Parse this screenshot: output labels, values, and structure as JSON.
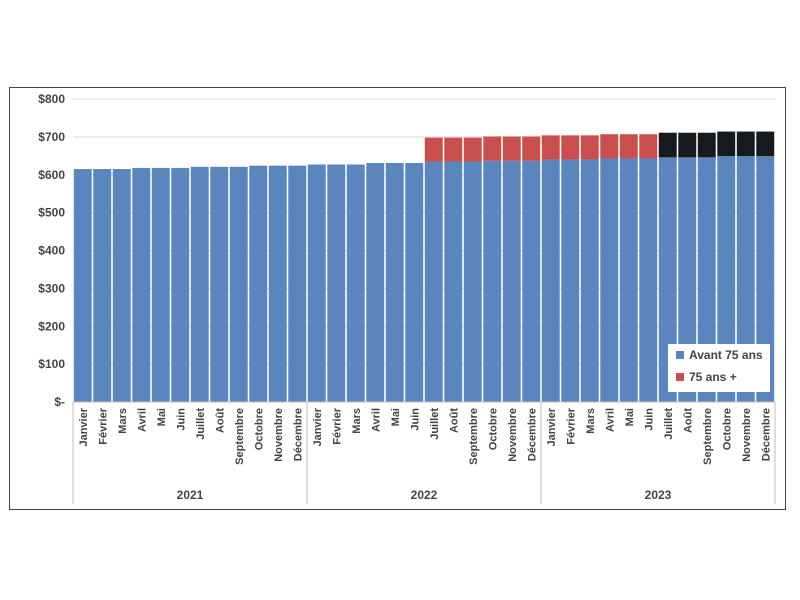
{
  "chart_data": {
    "type": "bar",
    "stacked": true,
    "title": "",
    "xlabel": "",
    "ylabel": "",
    "ylim": [
      0,
      800
    ],
    "yticks": [
      0,
      100,
      200,
      300,
      400,
      500,
      600,
      700,
      800
    ],
    "ytick_labels": [
      "$-",
      "$100",
      "$200",
      "$300",
      "$400",
      "$500",
      "$600",
      "$700",
      "$800"
    ],
    "grid": true,
    "legend_position": "bottom-right",
    "groups": [
      {
        "label": "2021",
        "categories": [
          "Janvier",
          "Février",
          "Mars",
          "Avril",
          "Mai",
          "Juin",
          "Juillet",
          "Août",
          "Septembre",
          "Octobre",
          "Novembre",
          "Décembre"
        ]
      },
      {
        "label": "2022",
        "categories": [
          "Janvier",
          "Février",
          "Mars",
          "Avril",
          "Mai",
          "Juin",
          "Juillet",
          "Août",
          "Septembre",
          "Octobre",
          "Novembre",
          "Décembre"
        ]
      },
      {
        "label": "2023",
        "categories": [
          "Janvier",
          "Février",
          "Mars",
          "Avril",
          "Mai",
          "Juin",
          "Juillet",
          "Août",
          "Septembre",
          "Octobre",
          "Novembre",
          "Décembre"
        ]
      }
    ],
    "series": [
      {
        "name": "Avant 75 ans",
        "color": "#5b85bd",
        "values": [
          615,
          615,
          615,
          618,
          618,
          618,
          621,
          621,
          621,
          624,
          624,
          624,
          627,
          627,
          627,
          631,
          631,
          631,
          635,
          635,
          635,
          637,
          637,
          637,
          640,
          640,
          640,
          643,
          643,
          643,
          646,
          646,
          646,
          649,
          649,
          649
        ]
      },
      {
        "name": "75 ans +",
        "color": "#c94f4f",
        "values": [
          0,
          0,
          0,
          0,
          0,
          0,
          0,
          0,
          0,
          0,
          0,
          0,
          0,
          0,
          0,
          0,
          0,
          0,
          63,
          63,
          63,
          64,
          64,
          64,
          64,
          64,
          64,
          64,
          64,
          64,
          0,
          0,
          0,
          0,
          0,
          0
        ]
      },
      {
        "name": "",
        "color": "#161a1d",
        "in_legend": false,
        "values": [
          0,
          0,
          0,
          0,
          0,
          0,
          0,
          0,
          0,
          0,
          0,
          0,
          0,
          0,
          0,
          0,
          0,
          0,
          0,
          0,
          0,
          0,
          0,
          0,
          0,
          0,
          0,
          0,
          0,
          0,
          65,
          65,
          65,
          65,
          65,
          65
        ]
      }
    ]
  }
}
